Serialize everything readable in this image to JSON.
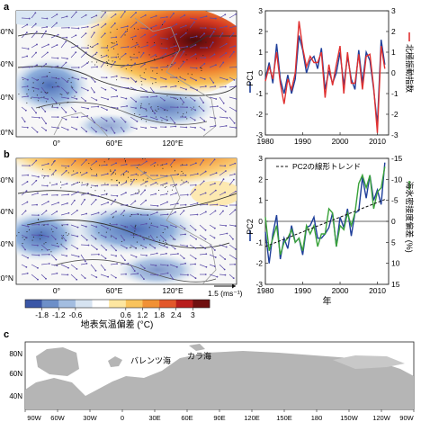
{
  "figure": {
    "panels": [
      {
        "letter": "a",
        "map_lat_ticks": [
          "80°N",
          "60°N",
          "40°N",
          "20°N"
        ],
        "map_lon_ticks": [
          "0°",
          "60°E",
          "120°E"
        ]
      },
      {
        "letter": "b",
        "map_lat_ticks": [
          "80°N",
          "60°N",
          "40°N",
          "20°N"
        ],
        "map_lon_ticks": [
          "0°",
          "60°E",
          "120°E"
        ],
        "vector_scale": "1.5 (ms⁻¹)"
      },
      {
        "letter": "c",
        "map_lat_ticks": [
          "80N",
          "60N",
          "40N"
        ],
        "map_lon_ticks": [
          "90W",
          "60W",
          "30W",
          "0",
          "30E",
          "60E",
          "90E",
          "120E",
          "150E",
          "180",
          "150W",
          "120W",
          "90W"
        ]
      }
    ],
    "colorbar": {
      "ticks": [
        "-1.8",
        "-1.2",
        "-0.6",
        "0.6",
        "1.2",
        "1.8",
        "2.4",
        "3"
      ],
      "label": "地表気温偏差 (°C)",
      "colors": [
        "#3a56a6",
        "#6d8fc8",
        "#a3bde0",
        "#d6e3f1",
        "#ffffff",
        "#fde6a0",
        "#f9c35c",
        "#f19135",
        "#e2572a",
        "#b81e1d",
        "#701010"
      ]
    },
    "map_c_labels": [
      "バレンツ海",
      "カラ海"
    ]
  },
  "chart_data": [
    {
      "type": "line",
      "x": [
        1980,
        1981,
        1982,
        1983,
        1984,
        1985,
        1986,
        1987,
        1988,
        1989,
        1990,
        1991,
        1992,
        1993,
        1994,
        1995,
        1996,
        1997,
        1998,
        1999,
        2000,
        2001,
        2002,
        2003,
        2004,
        2005,
        2006,
        2007,
        2008,
        2009,
        2010,
        2011,
        2012
      ],
      "xlim": [
        1980,
        2013
      ],
      "xticks": [
        "1980",
        "1990",
        "2000",
        "2010"
      ],
      "left_axis": {
        "label": "PC1",
        "ylim": [
          -3,
          3
        ],
        "ticks": [
          "3",
          "2",
          "1",
          "0",
          "-1",
          "-2",
          "-3"
        ]
      },
      "right_axis": {
        "label": "北極振動指数",
        "ylim": [
          -3,
          3
        ],
        "ticks": [
          "3",
          "2",
          "1",
          "0",
          "-1",
          "-2",
          "-3"
        ]
      },
      "series": [
        {
          "name": "PC1",
          "color": "#1f3f9a",
          "axis": "left",
          "values": [
            -0.3,
            0.5,
            -0.5,
            1.4,
            -0.3,
            -1.0,
            -0.1,
            -1.0,
            -0.3,
            1.8,
            1.1,
            0.0,
            0.6,
            0.8,
            0.2,
            1.2,
            -0.8,
            0.1,
            -0.5,
            0.0,
            1.0,
            -0.6,
            0.8,
            -0.3,
            -0.8,
            1.1,
            -0.5,
            1.0,
            0.6,
            -0.8,
            -2.5,
            1.6,
            0.4
          ]
        },
        {
          "name": "北極振動指数",
          "color": "#e03030",
          "axis": "right",
          "values": [
            -0.4,
            0.3,
            -0.3,
            1.0,
            -0.5,
            -1.5,
            -0.3,
            -0.8,
            0.0,
            2.5,
            1.2,
            0.3,
            0.8,
            0.5,
            0.5,
            1.0,
            -1.2,
            0.4,
            -0.6,
            0.4,
            1.3,
            -1.0,
            1.0,
            -0.5,
            -0.5,
            0.9,
            -0.8,
            0.8,
            0.9,
            -0.7,
            -2.9,
            1.3,
            0.2
          ]
        }
      ]
    },
    {
      "type": "line",
      "x": [
        1980,
        1981,
        1982,
        1983,
        1984,
        1985,
        1986,
        1987,
        1988,
        1989,
        1990,
        1991,
        1992,
        1993,
        1994,
        1995,
        1996,
        1997,
        1998,
        1999,
        2000,
        2001,
        2002,
        2003,
        2004,
        2005,
        2006,
        2007,
        2008,
        2009,
        2010,
        2011,
        2012
      ],
      "xlim": [
        1980,
        2013
      ],
      "xticks": [
        "1980",
        "1990",
        "2000",
        "2010"
      ],
      "xlabel": "年",
      "left_axis": {
        "label": "PC2",
        "ylim": [
          -3,
          3
        ],
        "ticks": [
          "3",
          "2",
          "1",
          "0",
          "-1",
          "-2",
          "-3"
        ]
      },
      "right_axis": {
        "label": "海氷密接度偏差 (%)",
        "ylim": [
          15,
          -15
        ],
        "ticks": [
          "-15",
          "-10",
          "-5",
          "0",
          "5",
          "10",
          "15"
        ]
      },
      "legend": "PC2の線形トレンド",
      "series": [
        {
          "name": "PC2",
          "color": "#1f3f9a",
          "axis": "left",
          "values": [
            -0.5,
            -2.0,
            -0.6,
            0.3,
            -1.8,
            -0.8,
            -1.3,
            -0.2,
            -1.0,
            -0.8,
            -1.6,
            -0.3,
            -0.2,
            0.2,
            -0.8,
            -0.8,
            -0.6,
            -0.3,
            0.4,
            -1.2,
            0.2,
            -0.3,
            0.6,
            -0.7,
            0.4,
            0.5,
            2.1,
            1.1,
            2.2,
            1.0,
            1.5,
            0.8,
            2.8
          ]
        },
        {
          "name": "",
          "color": "#3aa33a",
          "axis": "right",
          "values": [
            -1,
            7,
            4,
            1,
            8,
            5,
            4,
            2,
            5,
            4,
            7,
            1,
            3,
            1,
            6,
            3,
            3,
            -3,
            -2,
            6,
            1,
            2,
            -2,
            1,
            -2,
            -9,
            -11,
            -8,
            -11,
            -3,
            -7,
            -8,
            -13
          ]
        },
        {
          "name": "PC2の線形トレンド",
          "color": "#111111",
          "axis": "left",
          "dashed": true,
          "values": [
            -1.2,
            -1.13,
            -1.06,
            -0.99,
            -0.92,
            -0.85,
            -0.78,
            -0.71,
            -0.64,
            -0.57,
            -0.5,
            -0.43,
            -0.36,
            -0.29,
            -0.22,
            -0.15,
            -0.08,
            -0.01,
            0.06,
            0.13,
            0.2,
            0.27,
            0.34,
            0.41,
            0.48,
            0.55,
            0.62,
            0.69,
            0.76,
            0.83,
            0.9,
            0.97,
            1.04
          ]
        }
      ]
    }
  ]
}
